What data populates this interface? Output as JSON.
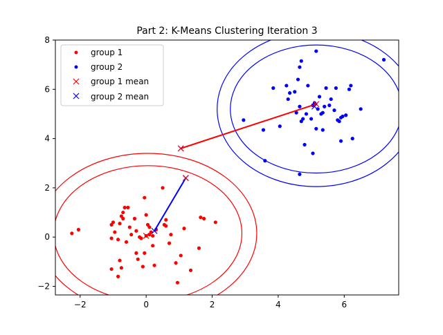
{
  "chart_data": {
    "type": "scatter",
    "title": "Part 2: K-Means Clustering Iteration 3",
    "xlabel": "",
    "ylabel": "",
    "xlim": [
      -2.75,
      7.65
    ],
    "ylim": [
      -2.35,
      8.0
    ],
    "xticks": [
      -2,
      0,
      2,
      4,
      6
    ],
    "yticks": [
      -2,
      0,
      2,
      4,
      6,
      8
    ],
    "legend_position": "top-left",
    "grid": false,
    "series": [
      {
        "name": "group 1",
        "marker": "dot",
        "color": "#ff0000",
        "points": [
          [
            -2.25,
            0.15
          ],
          [
            -2.05,
            0.3
          ],
          [
            -1.05,
            0.5
          ],
          [
            -1.0,
            0.6
          ],
          [
            -1.05,
            -0.05
          ],
          [
            -0.95,
            0.2
          ],
          [
            -0.85,
            -0.1
          ],
          [
            -0.8,
            0.55
          ],
          [
            -0.75,
            0.85
          ],
          [
            -0.7,
            1.0
          ],
          [
            -0.7,
            0.75
          ],
          [
            -0.65,
            1.2
          ],
          [
            -0.55,
            1.2
          ],
          [
            -0.6,
            -0.2
          ],
          [
            -0.5,
            0.4
          ],
          [
            -0.45,
            0.1
          ],
          [
            -0.35,
            0.75
          ],
          [
            -0.3,
            -0.65
          ],
          [
            -0.25,
            -0.9
          ],
          [
            -0.2,
            0.0
          ],
          [
            -0.15,
            -0.05
          ],
          [
            -0.1,
            -1.2
          ],
          [
            -0.05,
            1.6
          ],
          [
            0.0,
            0.05
          ],
          [
            0.0,
            0.9
          ],
          [
            0.05,
            0.5
          ],
          [
            0.1,
            0.1
          ],
          [
            0.1,
            0.4
          ],
          [
            0.15,
            0.2
          ],
          [
            0.2,
            0.05
          ],
          [
            -0.05,
            -0.65
          ],
          [
            0.2,
            -0.35
          ],
          [
            0.25,
            -1.15
          ],
          [
            0.3,
            0.3
          ],
          [
            0.5,
            2.0
          ],
          [
            0.55,
            0.5
          ],
          [
            0.6,
            0.7
          ],
          [
            0.6,
            0.45
          ],
          [
            0.7,
            -0.25
          ],
          [
            0.75,
            0.1
          ],
          [
            0.9,
            -1.05
          ],
          [
            1.05,
            -0.75
          ],
          [
            1.15,
            0.35
          ],
          [
            1.35,
            -1.35
          ],
          [
            1.6,
            -0.45
          ],
          [
            1.65,
            0.8
          ],
          [
            1.75,
            0.75
          ],
          [
            2.1,
            0.6
          ],
          [
            -1.05,
            -1.3
          ],
          [
            -0.85,
            -1.6
          ],
          [
            -0.75,
            -1.25
          ],
          [
            -0.8,
            -0.95
          ],
          [
            0.95,
            -1.85
          ],
          [
            -0.3,
            0.25
          ]
        ]
      },
      {
        "name": "group 2",
        "marker": "dot",
        "color": "#0000ff",
        "points": [
          [
            2.95,
            4.75
          ],
          [
            3.55,
            4.35
          ],
          [
            3.6,
            3.1
          ],
          [
            3.85,
            6.05
          ],
          [
            4.05,
            4.5
          ],
          [
            4.25,
            6.15
          ],
          [
            4.3,
            5.6
          ],
          [
            4.35,
            5.85
          ],
          [
            4.5,
            5.9
          ],
          [
            4.55,
            5.05
          ],
          [
            4.6,
            6.4
          ],
          [
            4.65,
            5.3
          ],
          [
            4.7,
            4.7
          ],
          [
            4.75,
            4.8
          ],
          [
            4.8,
            3.75
          ],
          [
            4.85,
            5.0
          ],
          [
            4.9,
            6.15
          ],
          [
            5.0,
            4.8
          ],
          [
            5.05,
            5.35
          ],
          [
            5.1,
            5.45
          ],
          [
            5.15,
            4.4
          ],
          [
            5.2,
            5.2
          ],
          [
            5.25,
            5.7
          ],
          [
            5.3,
            5.0
          ],
          [
            5.35,
            5.05
          ],
          [
            5.4,
            5.3
          ],
          [
            5.45,
            6.05
          ],
          [
            5.55,
            5.35
          ],
          [
            5.6,
            5.6
          ],
          [
            5.7,
            5.15
          ],
          [
            5.75,
            6.05
          ],
          [
            5.8,
            4.75
          ],
          [
            5.85,
            4.7
          ],
          [
            5.9,
            4.85
          ],
          [
            5.95,
            4.9
          ],
          [
            6.05,
            4.95
          ],
          [
            6.15,
            6.0
          ],
          [
            6.2,
            6.15
          ],
          [
            6.25,
            4.0
          ],
          [
            6.5,
            5.2
          ],
          [
            7.2,
            7.2
          ],
          [
            4.7,
            7.15
          ],
          [
            4.65,
            6.9
          ],
          [
            5.15,
            7.55
          ],
          [
            5.05,
            3.4
          ],
          [
            4.65,
            2.55
          ],
          [
            5.9,
            3.9
          ],
          [
            5.35,
            4.35
          ]
        ]
      }
    ],
    "means": [
      {
        "name": "group 1 mean",
        "color": "#ff0000",
        "path": [
          [
            1.05,
            3.6
          ],
          [
            5.15,
            5.4
          ]
        ],
        "current": [
          5.15,
          5.4
        ]
      },
      {
        "name": "group 2 mean",
        "color": "#0000ff",
        "path": [
          [
            1.2,
            2.4
          ],
          [
            0.25,
            0.25
          ]
        ],
        "current": [
          0.25,
          0.25
        ]
      }
    ],
    "mean_markers": [
      {
        "x": 1.05,
        "y": 3.6,
        "color": "#0000ff"
      },
      {
        "x": 1.05,
        "y": 3.6,
        "color": "#ff0000"
      },
      {
        "x": 5.15,
        "y": 5.4,
        "color": "#ff0000"
      },
      {
        "x": 5.1,
        "y": 5.3,
        "color": "#0000ff"
      },
      {
        "x": 1.2,
        "y": 2.4,
        "color": "#0000ff"
      },
      {
        "x": 1.2,
        "y": 2.4,
        "color": "#ff0000"
      },
      {
        "x": 0.25,
        "y": 0.25,
        "color": "#0000ff"
      },
      {
        "x": 0.0,
        "y": 0.05,
        "color": "#ff0000"
      }
    ],
    "ellipses": [
      {
        "color": "#ff0000",
        "cx": 0.05,
        "cy": 0.15,
        "rx": 2.85,
        "ry": 2.75
      },
      {
        "color": "#ff0000",
        "cx": 0.05,
        "cy": 0.15,
        "rx": 3.3,
        "ry": 3.25
      },
      {
        "color": "#0000ff",
        "cx": 5.15,
        "cy": 5.2,
        "rx": 2.6,
        "ry": 2.6
      },
      {
        "color": "#0000ff",
        "cx": 5.15,
        "cy": 5.2,
        "rx": 3.0,
        "ry": 3.15
      }
    ],
    "legend": [
      {
        "label": "group 1",
        "marker": "dot",
        "color": "#ff0000"
      },
      {
        "label": "group 2",
        "marker": "dot",
        "color": "#0000ff"
      },
      {
        "label": "group 1 mean",
        "marker": "x",
        "color": "#ff0000"
      },
      {
        "label": "group 2 mean",
        "marker": "x",
        "color": "#0000ff"
      }
    ]
  }
}
